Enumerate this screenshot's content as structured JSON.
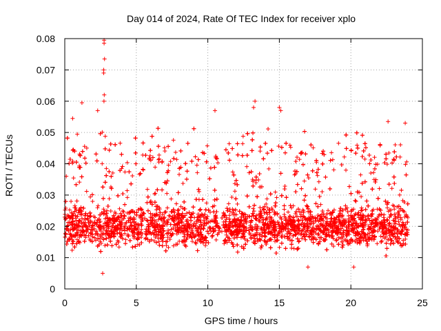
{
  "chart_data": {
    "type": "scatter",
    "title": "Day 014 of 2024, Rate Of TEC Index for receiver xplo",
    "xlabel": "GPS time / hours",
    "ylabel": "ROTI / TECUs",
    "xlim": [
      0,
      25
    ],
    "ylim": [
      0,
      0.08
    ],
    "xticks": [
      0,
      5,
      10,
      15,
      20,
      25
    ],
    "xtick_labels": [
      "0",
      "5",
      "10",
      "15",
      "20",
      "25"
    ],
    "yticks": [
      0,
      0.01,
      0.02,
      0.03,
      0.04,
      0.05,
      0.06,
      0.07,
      0.08
    ],
    "ytick_labels": [
      "0",
      "0.01",
      "0.02",
      "0.03",
      "0.04",
      "0.05",
      "0.06",
      "0.07",
      "0.08"
    ],
    "grid": true,
    "marker": "+",
    "color": "#ff0000",
    "x_range_data": [
      0,
      24
    ],
    "typical_band": [
      0.01,
      0.03
    ],
    "median_value": 0.02,
    "gap_hours": [
      10.8,
      11.1
    ],
    "outliers": [
      {
        "x": 2.75,
        "y": 0.0795
      },
      {
        "x": 2.75,
        "y": 0.0785
      },
      {
        "x": 2.78,
        "y": 0.0735
      },
      {
        "x": 2.72,
        "y": 0.07
      },
      {
        "x": 2.72,
        "y": 0.069
      },
      {
        "x": 2.76,
        "y": 0.062
      },
      {
        "x": 2.74,
        "y": 0.06
      },
      {
        "x": 13.3,
        "y": 0.06
      },
      {
        "x": 13.2,
        "y": 0.058
      },
      {
        "x": 15.0,
        "y": 0.058
      },
      {
        "x": 15.1,
        "y": 0.057
      },
      {
        "x": 1.2,
        "y": 0.0595
      },
      {
        "x": 2.3,
        "y": 0.057
      },
      {
        "x": 10.5,
        "y": 0.057
      },
      {
        "x": 0.55,
        "y": 0.0545
      },
      {
        "x": 23.8,
        "y": 0.053
      },
      {
        "x": 22.6,
        "y": 0.0535
      },
      {
        "x": 2.65,
        "y": 0.005
      },
      {
        "x": 17.0,
        "y": 0.007
      },
      {
        "x": 20.2,
        "y": 0.007
      }
    ]
  }
}
